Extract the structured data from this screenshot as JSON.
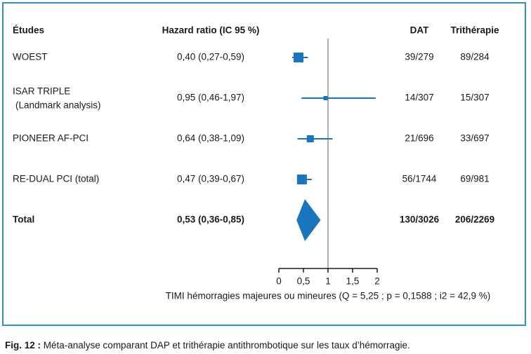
{
  "headers": {
    "study": "Études",
    "hr": "Hazard ratio (IC 95 %)",
    "dat": "DAT",
    "tri": "Trithérapie"
  },
  "caption": {
    "label": "Fig. 12 :",
    "text": " Méta-analyse comparant DAP et trithérapie antithrombotique sur les taux d’hémorragie."
  },
  "chart_data": {
    "type": "forest",
    "xlabel": "TIMI hémorragies majeures ou mineures (Q = 5,25 ; p = 0,1588 ; i2 = 42,9 %)",
    "xlim": [
      0,
      2
    ],
    "xticks": [
      0,
      0.5,
      1,
      1.5,
      2
    ],
    "xtick_labels": [
      "0",
      "0,5",
      "1",
      "1,5",
      "2"
    ],
    "reference_line": 1,
    "color": "#1a75bc",
    "studies": [
      {
        "name": "WOEST",
        "name2": "",
        "hr": 0.4,
        "lo": 0.27,
        "hi": 0.59,
        "hr_text": "0,40 (0,27-0,59)",
        "dat": "39/279",
        "tri": "89/284",
        "weight": 3
      },
      {
        "name": "ISAR TRIPLE",
        "name2": "(Landmark analysis)",
        "hr": 0.95,
        "lo": 0.46,
        "hi": 1.97,
        "hr_text": "0,95 (0,46-1,97)",
        "dat": "14/307",
        "tri": "15/307",
        "weight": 1
      },
      {
        "name": "PIONEER AF-PCI",
        "name2": "",
        "hr": 0.64,
        "lo": 0.38,
        "hi": 1.09,
        "hr_text": "0,64 (0,38-1,09)",
        "dat": "21/696",
        "tri": "33/697",
        "weight": 2
      },
      {
        "name": "RE-DUAL PCI (total)",
        "name2": "",
        "hr": 0.47,
        "lo": 0.39,
        "hi": 0.67,
        "hr_text": "0,47 (0,39-0,67)",
        "dat": "56/1744",
        "tri": "69/981",
        "weight": 3
      }
    ],
    "total": {
      "name": "Total",
      "hr": 0.53,
      "lo": 0.36,
      "hi": 0.85,
      "hr_text": "0,53 (0,36-0,85)",
      "dat": "130/3026",
      "tri": "206/2269"
    }
  }
}
